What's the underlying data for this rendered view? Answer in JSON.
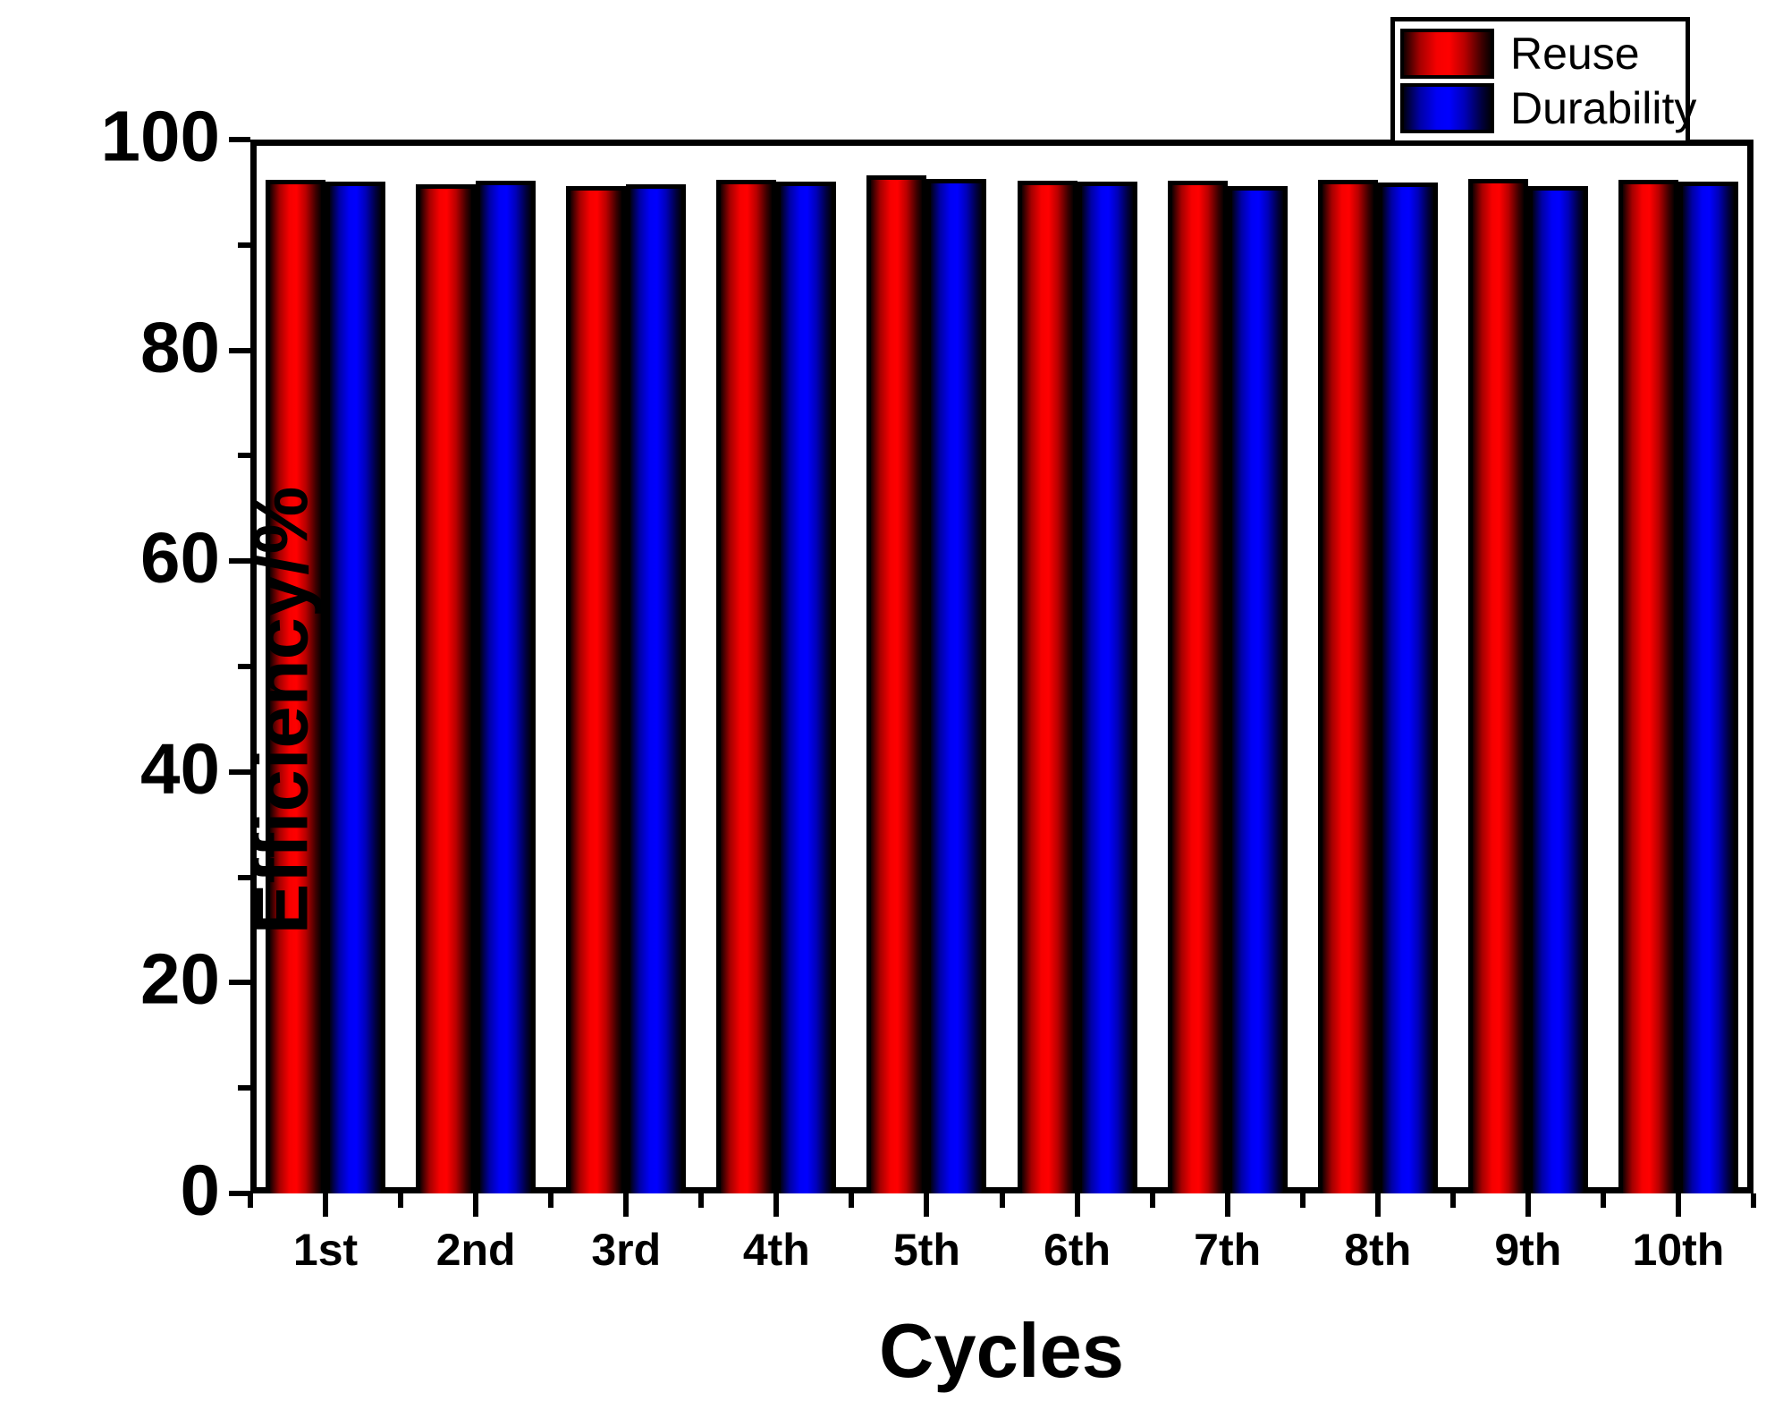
{
  "chart_data": {
    "type": "bar",
    "title": "",
    "xlabel": "Cycles",
    "ylabel": "Efficiency/%",
    "categories": [
      "1st",
      "2nd",
      "3rd",
      "4th",
      "5th",
      "6th",
      "7th",
      "8th",
      "9th",
      "10th"
    ],
    "series": [
      {
        "name": "Reuse",
        "color": "#ff0000",
        "values": [
          96.2,
          95.8,
          95.6,
          96.2,
          96.6,
          96.1,
          96.1,
          96.2,
          96.3,
          96.2
        ]
      },
      {
        "name": "Durability",
        "color": "#0000ff",
        "values": [
          96.0,
          96.1,
          95.8,
          96.0,
          96.3,
          96.0,
          95.6,
          95.9,
          95.6,
          96.0
        ]
      }
    ],
    "ylim": [
      0,
      100
    ],
    "y_major_ticks": [
      0,
      20,
      40,
      60,
      80,
      100
    ],
    "y_minor_ticks": [
      10,
      30,
      50,
      70,
      90
    ],
    "grid": false,
    "legend_position": "top-right"
  },
  "legend": {
    "items": [
      {
        "label": "Reuse",
        "color": "#ff0000"
      },
      {
        "label": "Durability",
        "color": "#0000ff"
      }
    ]
  },
  "axes": {
    "x_title": "Cycles",
    "y_title": "Efficiency/%"
  }
}
